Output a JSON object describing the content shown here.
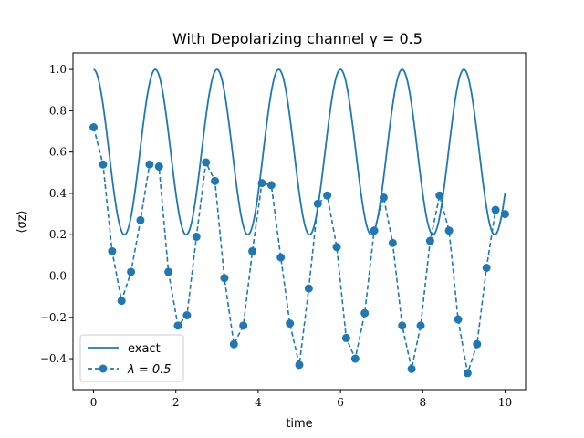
{
  "chart_data": {
    "type": "line",
    "title": "With Depolarizing channel γ = 0.5",
    "xlabel": "time",
    "ylabel": "⟨σz⟩",
    "xlim": [
      -0.5,
      10.5
    ],
    "ylim": [
      -0.55,
      1.08
    ],
    "xticks": [
      0,
      2,
      4,
      6,
      8,
      10
    ],
    "yticks": [
      -0.4,
      -0.2,
      0.0,
      0.2,
      0.4,
      0.6,
      0.8,
      1.0
    ],
    "ytick_labels": [
      "−0.4",
      "−0.2",
      "0.0",
      "0.2",
      "0.4",
      "0.6",
      "0.8",
      "1.0"
    ],
    "grid": false,
    "legend_position": "lower-left",
    "series": [
      {
        "name": "exact",
        "style": "solid",
        "color": "#1f77b4",
        "formula": "0.6 + 0.4*cos(2*pi*t/1.5)",
        "t_range": [
          0,
          10
        ]
      },
      {
        "name": "λ = 0.5",
        "style": "dashed-with-markers",
        "color": "#1f77b4",
        "x": [
          0.0,
          0.23,
          0.45,
          0.68,
          0.91,
          1.14,
          1.36,
          1.59,
          1.82,
          2.05,
          2.27,
          2.5,
          2.73,
          2.95,
          3.18,
          3.41,
          3.64,
          3.86,
          4.09,
          4.32,
          4.55,
          4.77,
          5.0,
          5.23,
          5.45,
          5.68,
          5.91,
          6.14,
          6.36,
          6.59,
          6.82,
          7.05,
          7.27,
          7.5,
          7.73,
          7.95,
          8.18,
          8.41,
          8.64,
          8.86,
          9.09,
          9.32,
          9.55,
          9.77,
          10.0
        ],
        "values": [
          0.72,
          0.54,
          0.12,
          -0.12,
          0.02,
          0.27,
          0.54,
          0.53,
          0.02,
          -0.24,
          -0.19,
          0.19,
          0.55,
          0.46,
          -0.01,
          -0.33,
          -0.24,
          0.12,
          0.45,
          0.44,
          0.09,
          -0.23,
          -0.43,
          -0.06,
          0.35,
          0.39,
          0.14,
          -0.3,
          -0.4,
          -0.18,
          0.22,
          0.38,
          0.16,
          -0.24,
          -0.45,
          -0.24,
          0.17,
          0.39,
          0.22,
          -0.21,
          -0.47,
          -0.33,
          0.04,
          0.32,
          0.3
        ]
      }
    ]
  }
}
